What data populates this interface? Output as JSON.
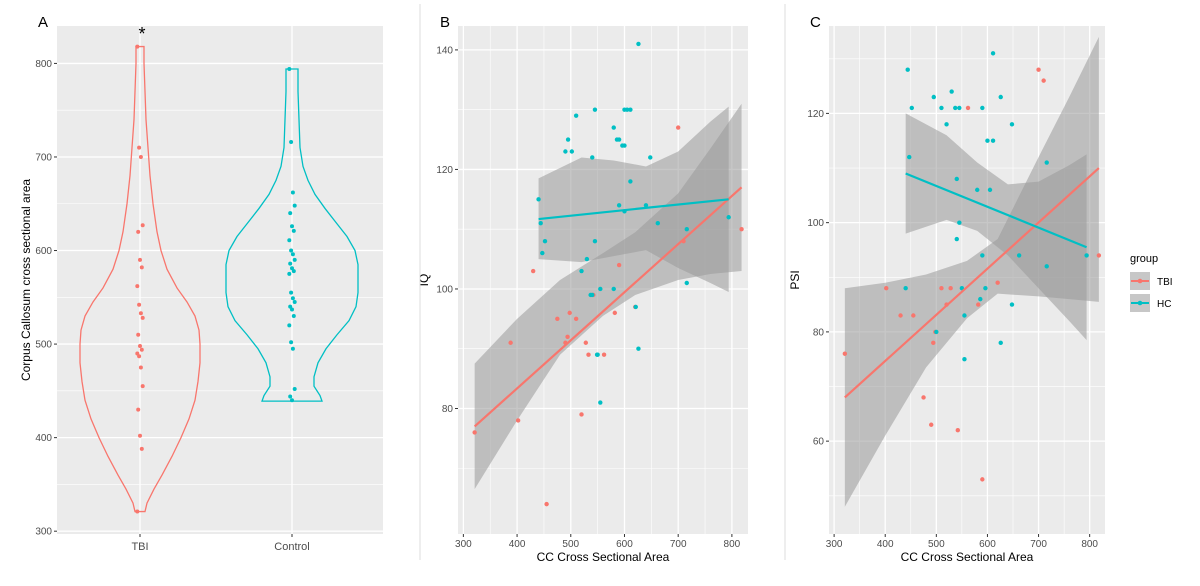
{
  "colors": {
    "tbi": "#f8766d",
    "hc": "#00bfc4",
    "panel_bg": "#ebebeb",
    "grid": "#ffffff",
    "band": "#999999"
  },
  "chart_data": [
    {
      "type": "violin",
      "panel_label": "A",
      "annotation": "*",
      "ylabel": "Corpus Callosum cross sectional area",
      "xlabel": "",
      "ylim": [
        297,
        840
      ],
      "y_ticks": [
        300,
        400,
        500,
        600,
        700,
        800
      ],
      "categories": [
        "TBI",
        "Control"
      ],
      "series": [
        {
          "name": "TBI",
          "color": "#f8766d",
          "range": [
            321,
            818
          ],
          "values": [
            818,
            710,
            700,
            627,
            620,
            590,
            582,
            562,
            542,
            533,
            528,
            510,
            498,
            494,
            490,
            487,
            475,
            455,
            430,
            402,
            388,
            321
          ]
        },
        {
          "name": "Control",
          "color": "#00bfc4",
          "range": [
            439,
            794
          ],
          "values": [
            794,
            716,
            662,
            648,
            640,
            626,
            621,
            611,
            600,
            596,
            590,
            586,
            581,
            578,
            575,
            555,
            549,
            545,
            540,
            537,
            530,
            520,
            502,
            495,
            452,
            444,
            440
          ]
        }
      ]
    },
    {
      "type": "scatter",
      "panel_label": "B",
      "xlabel": "CC Cross Sectional Area",
      "ylabel": "IQ",
      "xlim": [
        290,
        830
      ],
      "ylim": [
        59,
        144
      ],
      "x_ticks": [
        300,
        400,
        500,
        600,
        700,
        800
      ],
      "y_ticks": [
        80,
        100,
        120,
        140
      ],
      "series": [
        {
          "name": "TBI",
          "color": "#f8766d",
          "points": [
            [
              321,
              76
            ],
            [
              388,
              91
            ],
            [
              402,
              78
            ],
            [
              430,
              103
            ],
            [
              455,
              64
            ],
            [
              475,
              95
            ],
            [
              490,
              91
            ],
            [
              494,
              92
            ],
            [
              498,
              96
            ],
            [
              510,
              95
            ],
            [
              520,
              79
            ],
            [
              528,
              91
            ],
            [
              533,
              89
            ],
            [
              542,
              99
            ],
            [
              562,
              89
            ],
            [
              582,
              96
            ],
            [
              590,
              104
            ],
            [
              620,
              97
            ],
            [
              700,
              127
            ],
            [
              710,
              108
            ],
            [
              818,
              110
            ]
          ],
          "fit": {
            "x": [
              321,
              818
            ],
            "y": [
              77,
              117
            ]
          },
          "band_upper": [
            [
              321,
              87.5
            ],
            [
              400,
              95
            ],
            [
              480,
              101.5
            ],
            [
              560,
              106
            ],
            [
              620,
              109.5
            ],
            [
              700,
              116
            ],
            [
              760,
              123.5
            ],
            [
              818,
              131
            ]
          ],
          "band_lower": [
            [
              321,
              66.5
            ],
            [
              400,
              78
            ],
            [
              480,
              89
            ],
            [
              560,
              95.5
            ],
            [
              620,
              99
            ],
            [
              700,
              101.5
            ],
            [
              760,
              102.5
            ],
            [
              818,
              103
            ]
          ]
        },
        {
          "name": "HC",
          "color": "#00bfc4",
          "points": [
            [
              440,
              115
            ],
            [
              444,
              111
            ],
            [
              447,
              106
            ],
            [
              452,
              108
            ],
            [
              490,
              123
            ],
            [
              495,
              125
            ],
            [
              502,
              123
            ],
            [
              510,
              129
            ],
            [
              520,
              103
            ],
            [
              530,
              105
            ],
            [
              537,
              99
            ],
            [
              540,
              99
            ],
            [
              545,
              130
            ],
            [
              540,
              122
            ],
            [
              545,
              108
            ],
            [
              549,
              89
            ],
            [
              550,
              89
            ],
            [
              555,
              81
            ],
            [
              555,
              100
            ],
            [
              580,
              100
            ],
            [
              580,
              127
            ],
            [
              586,
              125
            ],
            [
              590,
              114
            ],
            [
              590,
              125
            ],
            [
              596,
              124
            ],
            [
              600,
              113
            ],
            [
              600,
              130
            ],
            [
              600,
              124
            ],
            [
              605,
              130
            ],
            [
              611,
              118
            ],
            [
              611,
              130
            ],
            [
              621,
              97
            ],
            [
              626,
              141
            ],
            [
              626,
              90
            ],
            [
              640,
              114
            ],
            [
              648,
              122
            ],
            [
              662,
              111
            ],
            [
              716,
              110
            ],
            [
              716,
              101
            ],
            [
              794,
              112
            ]
          ],
          "fit": {
            "x": [
              440,
              794
            ],
            "y": [
              111.7,
              115
            ]
          },
          "band_upper": [
            [
              440,
              118.5
            ],
            [
              520,
              122
            ],
            [
              580,
              121.5
            ],
            [
              640,
              120.5
            ],
            [
              700,
              123
            ],
            [
              760,
              128
            ],
            [
              794,
              130.5
            ]
          ],
          "band_lower": [
            [
              440,
              105
            ],
            [
              520,
              104.5
            ],
            [
              580,
              105.5
            ],
            [
              640,
              106.5
            ],
            [
              700,
              103.5
            ],
            [
              760,
              101
            ],
            [
              794,
              99.5
            ]
          ]
        }
      ]
    },
    {
      "type": "scatter",
      "panel_label": "C",
      "xlabel": "CC Cross Sectional Area",
      "ylabel": "PSI",
      "xlim": [
        290,
        830
      ],
      "ylim": [
        43,
        136
      ],
      "x_ticks": [
        300,
        400,
        500,
        600,
        700,
        800
      ],
      "y_ticks": [
        60,
        80,
        100,
        120
      ],
      "legend": {
        "title": "group",
        "position": "right",
        "entries": [
          "TBI",
          "HC"
        ]
      },
      "series": [
        {
          "name": "TBI",
          "color": "#f8766d",
          "points": [
            [
              321,
              76
            ],
            [
              402,
              88
            ],
            [
              430,
              83
            ],
            [
              455,
              83
            ],
            [
              475,
              68
            ],
            [
              490,
              63
            ],
            [
              494,
              78
            ],
            [
              498,
              80
            ],
            [
              510,
              88
            ],
            [
              520,
              85
            ],
            [
              528,
              88
            ],
            [
              542,
              62
            ],
            [
              562,
              121
            ],
            [
              582,
              85
            ],
            [
              590,
              53
            ],
            [
              620,
              89
            ],
            [
              700,
              128
            ],
            [
              710,
              126
            ],
            [
              818,
              94
            ]
          ],
          "fit": {
            "x": [
              321,
              818
            ],
            "y": [
              68,
              110
            ]
          },
          "band_upper": [
            [
              321,
              88
            ],
            [
              400,
              89
            ],
            [
              480,
              90.5
            ],
            [
              560,
              93
            ],
            [
              620,
              97
            ],
            [
              700,
              112
            ],
            [
              760,
              123
            ],
            [
              818,
              134
            ]
          ],
          "band_lower": [
            [
              321,
              48
            ],
            [
              400,
              61
            ],
            [
              480,
              73.5
            ],
            [
              560,
              82.5
            ],
            [
              620,
              87
            ],
            [
              700,
              86.5
            ],
            [
              760,
              86
            ],
            [
              818,
              85.5
            ]
          ]
        },
        {
          "name": "HC",
          "color": "#00bfc4",
          "points": [
            [
              440,
              88
            ],
            [
              444,
              128
            ],
            [
              447,
              112
            ],
            [
              452,
              121
            ],
            [
              495,
              123
            ],
            [
              500,
              80
            ],
            [
              510,
              121
            ],
            [
              520,
              118
            ],
            [
              530,
              124
            ],
            [
              537,
              121
            ],
            [
              540,
              108
            ],
            [
              540,
              97
            ],
            [
              545,
              100
            ],
            [
              545,
              121
            ],
            [
              550,
              88
            ],
            [
              555,
              75
            ],
            [
              555,
              83
            ],
            [
              580,
              106
            ],
            [
              586,
              86
            ],
            [
              590,
              94
            ],
            [
              590,
              121
            ],
            [
              596,
              88
            ],
            [
              600,
              115
            ],
            [
              605,
              106
            ],
            [
              611,
              115
            ],
            [
              611,
              131
            ],
            [
              626,
              78
            ],
            [
              626,
              123
            ],
            [
              648,
              85
            ],
            [
              648,
              118
            ],
            [
              662,
              94
            ],
            [
              716,
              111
            ],
            [
              716,
              92
            ],
            [
              794,
              94
            ]
          ],
          "fit": {
            "x": [
              440,
              794
            ],
            "y": [
              109,
              95.5
            ]
          },
          "band_upper": [
            [
              440,
              120
            ],
            [
              520,
              116
            ],
            [
              580,
              111
            ],
            [
              640,
              107
            ],
            [
              700,
              107.5
            ],
            [
              760,
              110.5
            ],
            [
              794,
              112.5
            ]
          ],
          "band_lower": [
            [
              440,
              98
            ],
            [
              520,
              100.5
            ],
            [
              580,
              98.5
            ],
            [
              640,
              94
            ],
            [
              700,
              88
            ],
            [
              760,
              82
            ],
            [
              794,
              78.5
            ]
          ]
        }
      ]
    }
  ]
}
